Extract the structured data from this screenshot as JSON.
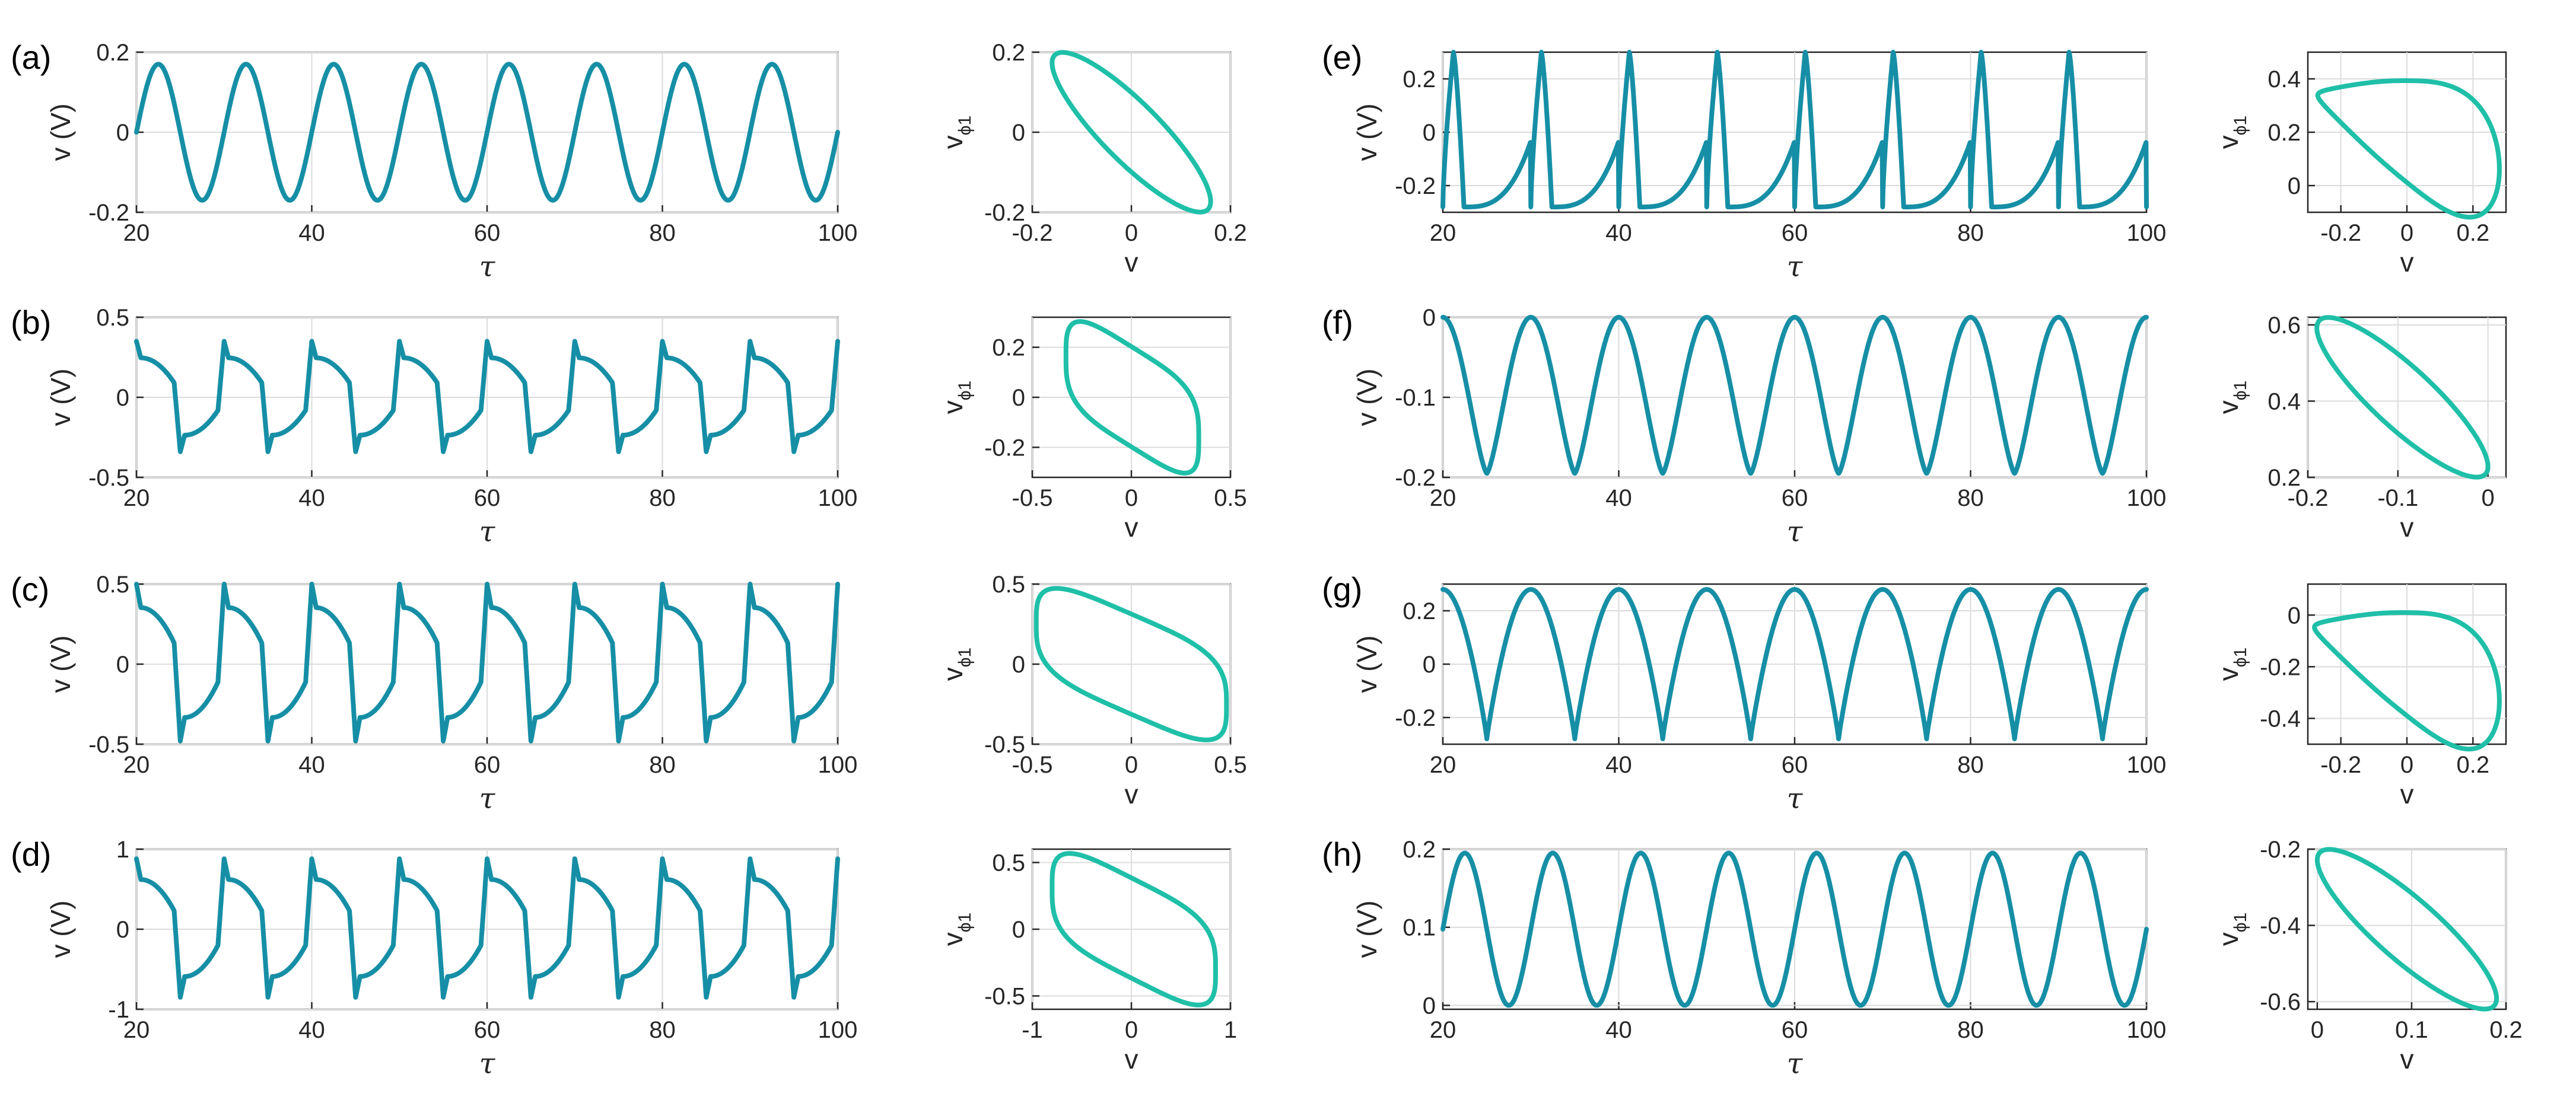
{
  "colors": {
    "time_series": "#168FA6",
    "phase_portrait": "#1FBFA8",
    "grid": "#DCDCDC",
    "axes": "#262626"
  },
  "time_axis": {
    "label": "τ",
    "ylabel": "v (V)",
    "xlim": [
      20,
      100
    ],
    "xticks": [
      "20",
      "40",
      "60",
      "80",
      "100"
    ]
  },
  "phase_axis": {
    "xlabel": "v",
    "ylabel_main": "v",
    "ylabel_sub": "ϕ1"
  },
  "chart_data": [
    {
      "type": "line",
      "panel": "(a)",
      "role": "time-series",
      "waveform": "sine",
      "period": 10,
      "x_start": 20,
      "y_min": -0.17,
      "y_max": 0.17,
      "ylim": [
        -0.2,
        0.2
      ],
      "yticks": [
        -0.2,
        0,
        0.2
      ],
      "ytick_labels": [
        "-0.2",
        "0",
        "0.2"
      ]
    },
    {
      "type": "line",
      "panel": "(a)",
      "role": "phase-portrait",
      "shape": "ellipse",
      "v_range": [
        -0.16,
        0.16
      ],
      "xlim": [
        -0.2,
        0.2
      ],
      "ylim": [
        -0.2,
        0.2
      ],
      "xticks": [
        -0.2,
        0,
        0.2
      ],
      "xtick_labels": [
        "-0.2",
        "0",
        "0.2"
      ],
      "yticks": [
        -0.2,
        0,
        0.2
      ],
      "ytick_labels": [
        "-0.2",
        "0",
        "0.2"
      ]
    },
    {
      "type": "line",
      "panel": "(b)",
      "role": "time-series",
      "waveform": "relaxation",
      "period": 10,
      "x_start": 20,
      "y_min": -0.34,
      "y_max": 0.35,
      "ylim": [
        -0.5,
        0.5
      ],
      "yticks": [
        -0.5,
        0,
        0.5
      ],
      "ytick_labels": [
        "-0.5",
        "0",
        "0.5"
      ]
    },
    {
      "type": "line",
      "panel": "(b)",
      "role": "phase-portrait",
      "shape": "relaxation-loop",
      "v_range": [
        -0.33,
        0.34
      ],
      "xlim": [
        -0.5,
        0.5
      ],
      "ylim": [
        -0.32,
        0.32
      ],
      "xticks": [
        -0.5,
        0,
        0.5
      ],
      "xtick_labels": [
        "-0.5",
        "0",
        "0.5"
      ],
      "yticks": [
        -0.2,
        0,
        0.2
      ],
      "ytick_labels": [
        "-0.2",
        "0",
        "0.2"
      ]
    },
    {
      "type": "line",
      "panel": "(c)",
      "role": "time-series",
      "waveform": "relaxation",
      "period": 10,
      "x_start": 20,
      "y_min": -0.48,
      "y_max": 0.5,
      "ylim": [
        -0.5,
        0.5
      ],
      "yticks": [
        -0.5,
        0,
        0.5
      ],
      "ytick_labels": [
        "-0.5",
        "0",
        "0.5"
      ]
    },
    {
      "type": "line",
      "panel": "(c)",
      "role": "phase-portrait",
      "shape": "relaxation-loop",
      "v_range": [
        -0.48,
        0.48
      ],
      "xlim": [
        -0.5,
        0.5
      ],
      "ylim": [
        -0.5,
        0.5
      ],
      "xticks": [
        -0.5,
        0,
        0.5
      ],
      "xtick_labels": [
        "-0.5",
        "0",
        "0.5"
      ],
      "yticks": [
        -0.5,
        0,
        0.5
      ],
      "ytick_labels": [
        "-0.5",
        "0",
        "0.5"
      ]
    },
    {
      "type": "line",
      "panel": "(d)",
      "role": "time-series",
      "waveform": "relaxation",
      "period": 10,
      "x_start": 20,
      "y_min": -0.85,
      "y_max": 0.88,
      "ylim": [
        -1,
        1
      ],
      "yticks": [
        -1,
        0,
        1
      ],
      "ytick_labels": [
        "-1",
        "0",
        "1"
      ]
    },
    {
      "type": "line",
      "panel": "(d)",
      "role": "phase-portrait",
      "shape": "relaxation-loop",
      "v_range": [
        -0.8,
        0.85
      ],
      "xlim": [
        -1,
        1
      ],
      "ylim": [
        -0.6,
        0.6
      ],
      "xticks": [
        -1,
        0,
        1
      ],
      "xtick_labels": [
        "-1",
        "0",
        "1"
      ],
      "yticks": [
        -0.5,
        0,
        0.5
      ],
      "ytick_labels": [
        "-0.5",
        "0",
        "0.5"
      ]
    },
    {
      "type": "line",
      "panel": "(e)",
      "role": "time-series",
      "waveform": "sawtooth",
      "period": 10,
      "x_start": 20,
      "y_min": -0.28,
      "y_max": 0.3,
      "ylim": [
        -0.3,
        0.3
      ],
      "yticks": [
        -0.2,
        0,
        0.2
      ],
      "ytick_labels": [
        "-0.2",
        "0",
        "0.2"
      ]
    },
    {
      "type": "line",
      "panel": "(e)",
      "role": "phase-portrait",
      "shape": "teardrop",
      "v_range": [
        -0.27,
        0.28
      ],
      "xlim": [
        -0.3,
        0.3
      ],
      "ylim": [
        -0.1,
        0.5
      ],
      "xticks": [
        -0.2,
        0,
        0.2
      ],
      "xtick_labels": [
        "-0.2",
        "0",
        "0.2"
      ],
      "yticks": [
        0,
        0.2,
        0.4
      ],
      "ytick_labels": [
        "0",
        "0.2",
        "0.4"
      ]
    },
    {
      "type": "line",
      "panel": "(f)",
      "role": "time-series",
      "waveform": "peaked",
      "period": 10,
      "x_start": 20,
      "y_min": -0.195,
      "y_max": 0,
      "ylim": [
        -0.2,
        0
      ],
      "yticks": [
        -0.2,
        -0.1,
        0
      ],
      "ytick_labels": [
        "-0.2",
        "-0.1",
        "0"
      ]
    },
    {
      "type": "line",
      "panel": "(f)",
      "role": "phase-portrait",
      "shape": "ellipse",
      "v_range": [
        -0.19,
        0.0
      ],
      "xlim": [
        -0.2,
        0.02
      ],
      "ylim": [
        0.2,
        0.62
      ],
      "xticks": [
        -0.2,
        -0.1,
        0
      ],
      "xtick_labels": [
        "-0.2",
        "-0.1",
        "0"
      ],
      "yticks": [
        0.2,
        0.4,
        0.6
      ],
      "ytick_labels": [
        "0.2",
        "0.4",
        "0.6"
      ]
    },
    {
      "type": "line",
      "panel": "(g)",
      "role": "time-series",
      "waveform": "plateau",
      "period": 10,
      "x_start": 20,
      "y_min": -0.28,
      "y_max": 0.28,
      "ylim": [
        -0.3,
        0.3
      ],
      "yticks": [
        -0.2,
        0,
        0.2
      ],
      "ytick_labels": [
        "-0.2",
        "0",
        "0.2"
      ]
    },
    {
      "type": "line",
      "panel": "(g)",
      "role": "phase-portrait",
      "shape": "teardrop",
      "v_range": [
        -0.28,
        0.28
      ],
      "xlim": [
        -0.3,
        0.3
      ],
      "ylim": [
        -0.5,
        0.12
      ],
      "xticks": [
        -0.2,
        0,
        0.2
      ],
      "xtick_labels": [
        "-0.2",
        "0",
        "0.2"
      ],
      "yticks": [
        -0.4,
        -0.2,
        0
      ],
      "ytick_labels": [
        "-0.4",
        "-0.2",
        "0"
      ]
    },
    {
      "type": "line",
      "panel": "(h)",
      "role": "time-series",
      "waveform": "sine",
      "period": 10,
      "x_start": 20,
      "y_min": 0,
      "y_max": 0.195,
      "ylim": [
        -0.005,
        0.2
      ],
      "yticks": [
        0,
        0.1,
        0.2
      ],
      "ytick_labels": [
        "0",
        "0.1",
        "0.2"
      ]
    },
    {
      "type": "line",
      "panel": "(h)",
      "role": "phase-portrait",
      "shape": "ellipse",
      "v_range": [
        0.0,
        0.19
      ],
      "xlim": [
        -0.01,
        0.2
      ],
      "ylim": [
        -0.62,
        -0.2
      ],
      "xticks": [
        0,
        0.1,
        0.2
      ],
      "xtick_labels": [
        "0",
        "0.1",
        "0.2"
      ],
      "yticks": [
        -0.6,
        -0.4,
        -0.2
      ],
      "ytick_labels": [
        "-0.6",
        "-0.4",
        "-0.2"
      ]
    }
  ]
}
